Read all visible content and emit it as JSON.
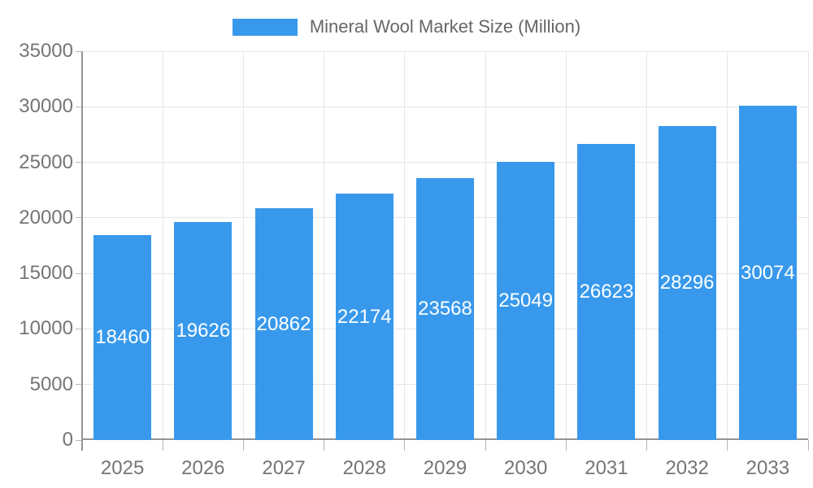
{
  "legend": {
    "label": "Mineral Wool Market Size (Million)",
    "swatch_color": "#3899EC"
  },
  "chart_data": {
    "type": "bar",
    "title": "Mineral Wool Market Size (Million)",
    "categories": [
      "2025",
      "2026",
      "2027",
      "2028",
      "2029",
      "2030",
      "2031",
      "2032",
      "2033"
    ],
    "series": [
      {
        "name": "Mineral Wool Market Size (Million)",
        "values": [
          18460,
          19626,
          20862,
          22174,
          23568,
          25049,
          26623,
          28296,
          30074
        ]
      }
    ],
    "value_labels": [
      "18460",
      "19626",
      "20862",
      "22174",
      "23568",
      "25049",
      "26623",
      "28296",
      "30074"
    ],
    "value_label_position": "inside-center",
    "xlabel": "",
    "ylabel": "",
    "ylim": [
      0,
      35000
    ],
    "yticks": [
      0,
      5000,
      10000,
      15000,
      20000,
      25000,
      30000,
      35000
    ],
    "ytick_labels": [
      "0",
      "5000",
      "10000",
      "15000",
      "20000",
      "25000",
      "30000",
      "35000"
    ],
    "grid": true,
    "legend_position": "top",
    "colors": {
      "bar": "#3899EC",
      "value_label_text": "#FFFFFF",
      "axis_text": "#757575",
      "legend_text": "#666666",
      "axis_line": "#949494",
      "gridline": "#E6E6E6",
      "tick": "#B5B5B5",
      "background": "#FFFFFF"
    }
  }
}
